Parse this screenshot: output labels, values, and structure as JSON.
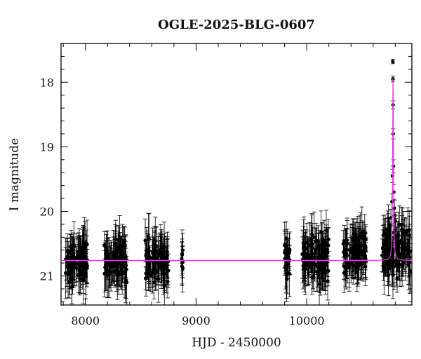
{
  "chart_data": {
    "type": "scatter",
    "title": "OGLE-2025-BLG-0607",
    "xlabel": "HJD - 2450000",
    "ylabel": "I magnitude",
    "xlim": [
      7780,
      10950
    ],
    "ylim": [
      17.4,
      21.45
    ],
    "y_inverted": true,
    "x_major_ticks": [
      8000,
      9000,
      10000
    ],
    "y_major_ticks": [
      18,
      19,
      20,
      21
    ],
    "x_minor_step": 200,
    "y_minor_step": 0.2,
    "grid": false,
    "colors": {
      "points": "#000000",
      "model": "#e040e0"
    },
    "observing_seasons": [
      {
        "x_range": [
          7820,
          8020
        ],
        "mag_center": 20.78,
        "mag_spread": 0.28
      },
      {
        "x_range": [
          8170,
          8380
        ],
        "mag_center": 20.78,
        "mag_spread": 0.28
      },
      {
        "x_range": [
          8540,
          8750
        ],
        "mag_center": 20.78,
        "mag_spread": 0.28
      },
      {
        "x_range": [
          8860,
          8880
        ],
        "mag_center": 20.75,
        "mag_spread": 0.2
      },
      {
        "x_range": [
          9800,
          9850
        ],
        "mag_center": 20.7,
        "mag_spread": 0.3
      },
      {
        "x_range": [
          9960,
          10200
        ],
        "mag_center": 20.7,
        "mag_spread": 0.32
      },
      {
        "x_range": [
          10330,
          10540
        ],
        "mag_center": 20.62,
        "mag_spread": 0.3
      },
      {
        "x_range": [
          10680,
          10940
        ],
        "mag_center": 20.6,
        "mag_spread": 0.32
      }
    ],
    "model": {
      "baseline_mag": 20.76,
      "peak_mag": 17.68,
      "t0": 10780,
      "width_days": 25
    },
    "peak_points": [
      {
        "x": 10778,
        "y": 17.68
      },
      {
        "x": 10779,
        "y": 17.95
      },
      {
        "x": 10780,
        "y": 18.35
      },
      {
        "x": 10781,
        "y": 18.8
      },
      {
        "x": 10783,
        "y": 19.3
      },
      {
        "x": 10775,
        "y": 19.45
      },
      {
        "x": 10786,
        "y": 19.7
      },
      {
        "x": 10770,
        "y": 19.85
      },
      {
        "x": 10792,
        "y": 19.95
      },
      {
        "x": 10760,
        "y": 20.1
      },
      {
        "x": 10800,
        "y": 20.15
      }
    ]
  }
}
